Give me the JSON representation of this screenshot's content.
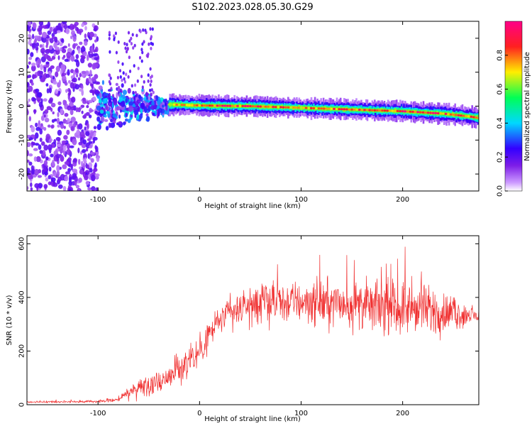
{
  "title": "S102.2023.028.05.30.G29",
  "colors": {
    "snr_line": "#f03030",
    "colormap": [
      "#cc99ff",
      "#7d1de8",
      "#3300ff",
      "#00d8ff",
      "#00ff55",
      "#ffee00",
      "#ff2020",
      "#ff0088"
    ]
  },
  "chart_data": [
    {
      "type": "heatmap",
      "xlabel": "Height of straight line (km)",
      "ylabel": "Frequency (Hz)",
      "xlim": [
        -170,
        275
      ],
      "ylim": [
        -25,
        25
      ],
      "x_ticks": [
        -100,
        0,
        100,
        200
      ],
      "y_ticks": [
        -20,
        -10,
        0,
        10,
        20
      ],
      "x_tick_labels": [
        "-100",
        "0",
        "100",
        "200"
      ],
      "y_tick_labels": [
        "-20",
        "-10",
        "0",
        "10",
        "20"
      ],
      "colorbar": {
        "label": "Normalized spectral amplitude",
        "range": [
          0,
          1
        ],
        "ticks": [
          0.0,
          0.2,
          0.4,
          0.6,
          0.8
        ],
        "tick_labels": [
          "0.0",
          "0.2",
          "0.4",
          "0.6",
          "0.8"
        ]
      },
      "ridge": {
        "x": [
          -30,
          0,
          50,
          100,
          150,
          200,
          240,
          265,
          275
        ],
        "frequency": [
          0.5,
          0.2,
          0.0,
          -0.5,
          -1.0,
          -1.5,
          -2.2,
          -3.0,
          -3.5
        ],
        "amplitude": [
          0.75,
          0.95,
          0.95,
          0.85,
          0.95,
          0.95,
          0.95,
          0.95,
          0.85
        ]
      },
      "noise_region_x": [
        -170,
        -100
      ],
      "scattered_region_x": [
        -100,
        -30
      ]
    },
    {
      "type": "line",
      "xlabel": "Height of straight line (km)",
      "ylabel": "SNR (10 * v/v)",
      "xlim": [
        -170,
        275
      ],
      "ylim": [
        0,
        630
      ],
      "x_ticks": [
        -100,
        0,
        100,
        200
      ],
      "y_ticks": [
        0,
        200,
        400,
        600
      ],
      "x_tick_labels": [
        "-100",
        "0",
        "100",
        "200"
      ],
      "y_tick_labels": [
        "0",
        "200",
        "400",
        "600"
      ],
      "envelope": {
        "x": [
          -170,
          -100,
          -80,
          -60,
          -40,
          -20,
          0,
          10,
          20,
          40,
          60,
          100,
          150,
          200,
          230,
          260,
          275
        ],
        "mean": [
          10,
          12,
          20,
          70,
          85,
          130,
          200,
          265,
          320,
          360,
          375,
          385,
          375,
          360,
          350,
          335,
          330
        ],
        "spread": [
          4,
          5,
          12,
          40,
          55,
          70,
          85,
          80,
          70,
          80,
          90,
          100,
          110,
          120,
          110,
          60,
          30
        ]
      }
    }
  ]
}
